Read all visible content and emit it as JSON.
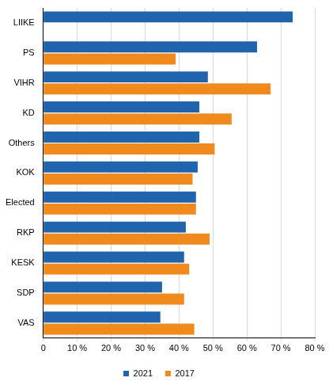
{
  "chart_data": {
    "type": "bar",
    "orientation": "horizontal",
    "categories": [
      "LIIKE",
      "PS",
      "VIHR",
      "KD",
      "Others",
      "KOK",
      "Elected",
      "RKP",
      "KESK",
      "SDP",
      "VAS"
    ],
    "series": [
      {
        "name": "2021",
        "color": "#1f64ad",
        "values": [
          73.5,
          63,
          48.5,
          46,
          46,
          45.5,
          45,
          42,
          41.5,
          35,
          34.5
        ]
      },
      {
        "name": "2017",
        "color": "#f08a1c",
        "values": [
          null,
          39,
          67,
          55.5,
          50.5,
          44,
          45,
          49,
          43,
          41.5,
          44.5
        ]
      }
    ],
    "xlim": [
      0,
      80
    ],
    "xticks": [
      0,
      {
        "value": 10,
        "label": "10 %"
      },
      {
        "value": 20,
        "label": "20 %"
      },
      {
        "value": 30,
        "label": "30 %"
      },
      {
        "value": 40,
        "label": "40 %"
      },
      {
        "value": 50,
        "label": "50 %"
      },
      {
        "value": 60,
        "label": "60 %"
      },
      {
        "value": 70,
        "label": "70 %"
      },
      {
        "value": 80,
        "label": "80 %"
      }
    ],
    "grid": true,
    "legend": "bottom"
  }
}
